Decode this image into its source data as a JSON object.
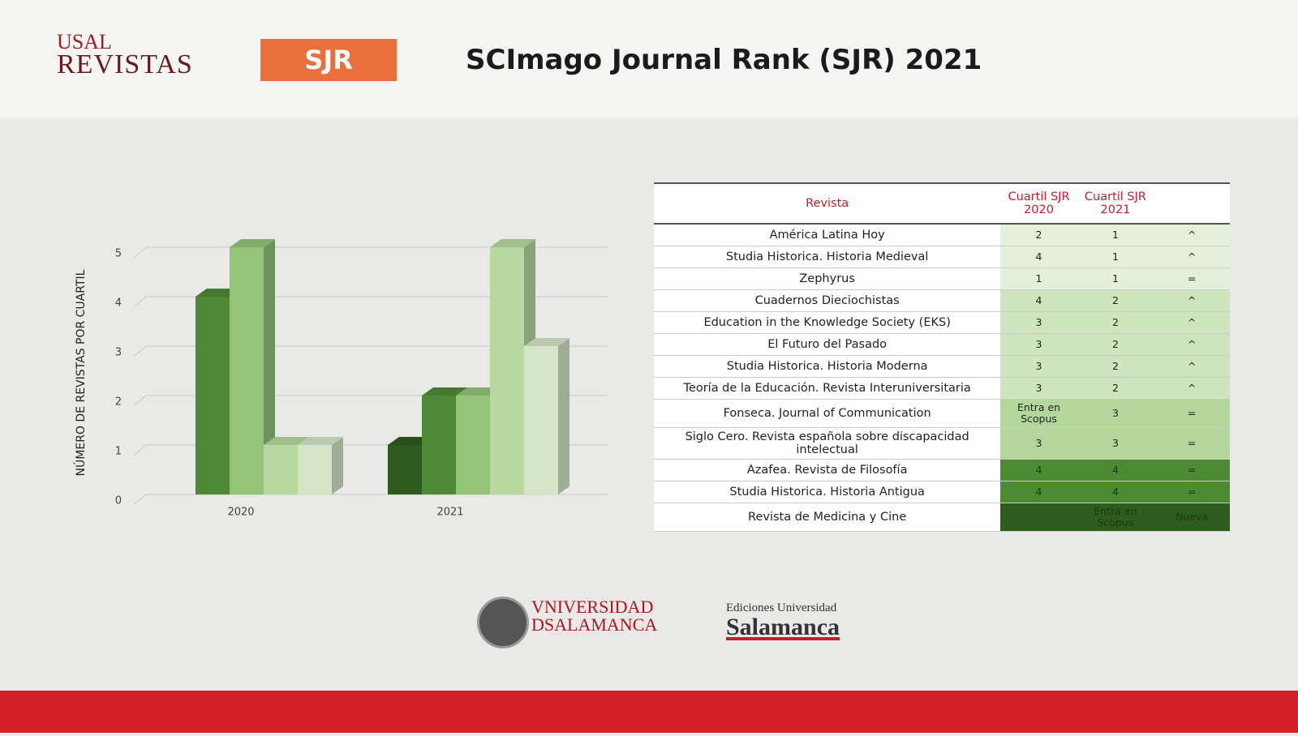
{
  "header": {
    "logo": [
      "USAL",
      "REVISTAS"
    ],
    "badge": "SJR",
    "title": "SCImago Journal Rank (SJR) 2021"
  },
  "chart_data": {
    "type": "bar3d",
    "y_label": "NÚMERO DE REVISTAS POR CUARTIL",
    "categories": [
      "2020",
      "2021"
    ],
    "series": [
      {
        "color": "#2f5a1f",
        "values": [
          null,
          1
        ]
      },
      {
        "color": "#4e8a35",
        "values": [
          4,
          2
        ]
      },
      {
        "color": "#93c47a",
        "values": [
          5,
          2
        ]
      },
      {
        "color": "#b7d8a1",
        "values": [
          1,
          5
        ]
      },
      {
        "color": "#d5e6c8",
        "values": [
          1,
          3
        ]
      }
    ],
    "ylim": [
      0,
      5
    ],
    "yticks": [
      0,
      1,
      2,
      3,
      4,
      5
    ],
    "grid": true
  },
  "table": {
    "header": [
      "Revista",
      "Cuartil SJR 2020",
      "Cuartil SJR 2021"
    ],
    "rows": [
      [
        "América Latina Hoy",
        "2",
        "1",
        "^"
      ],
      [
        "Studia Historica. Historia Medieval",
        "4",
        "1",
        "^"
      ],
      [
        "Zephyrus",
        "1",
        "1",
        "="
      ],
      [
        "Cuadernos Dieciochistas",
        "4",
        "2",
        "^"
      ],
      [
        "Education in the Knowledge Society (EKS)",
        "3",
        "2",
        "^"
      ],
      [
        "El Futuro del Pasado",
        "3",
        "2",
        "^"
      ],
      [
        "Studia Historica. Historia Moderna",
        "3",
        "2",
        "^"
      ],
      [
        "Teoría de la Educación. Revista Interuniversitaria",
        "3",
        "2",
        "^"
      ],
      [
        "Fonseca. Journal of Communication",
        "Entra en Scopus",
        "3",
        "="
      ],
      [
        "Siglo Cero. Revista española sobre discapacidad intelectual",
        "3",
        "3",
        "="
      ],
      [
        "Azafea. Revista de Filosofía",
        "4",
        "4",
        "="
      ],
      [
        "Studia Historica. Historia Antigua",
        "4",
        "4",
        "="
      ],
      [
        "Revista de Medicina y Cine",
        null,
        "Entra en Scopus",
        "Nueva"
      ]
    ]
  },
  "footer": {
    "university": [
      "VNIVERSIDAD",
      "DSALAMANCA"
    ],
    "press": [
      "Ediciones Universidad",
      "Salamanca"
    ]
  }
}
